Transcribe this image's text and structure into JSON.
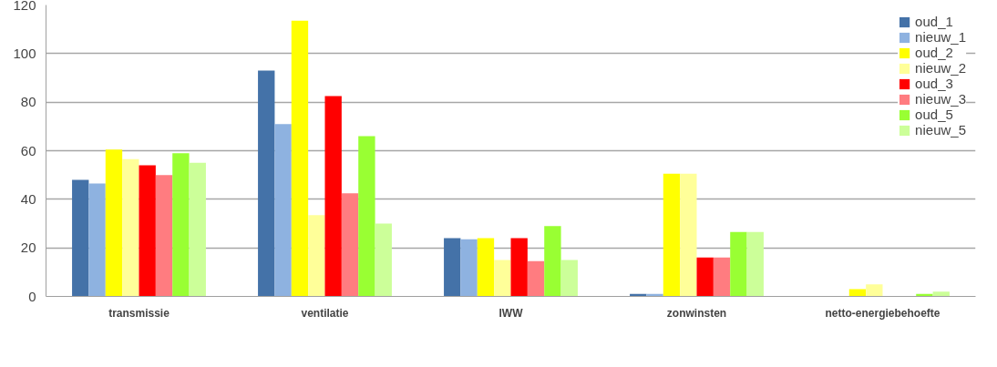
{
  "chart_data": {
    "type": "bar",
    "categories": [
      "transmissie",
      "ventilatie",
      "IWW",
      "zonwinsten",
      "netto-energiebehoefte"
    ],
    "series": [
      {
        "name": "oud_1",
        "color": "#4472a8",
        "values": [
          48,
          93,
          24,
          1,
          0
        ]
      },
      {
        "name": "nieuw_1",
        "color": "#8eb2e0",
        "values": [
          46.5,
          71,
          23.5,
          1,
          0
        ]
      },
      {
        "name": "oud_2",
        "color": "#ffff00",
        "values": [
          60.5,
          113.5,
          24,
          50.5,
          3
        ]
      },
      {
        "name": "nieuw_2",
        "color": "#ffff99",
        "values": [
          56.5,
          33.5,
          15,
          50.5,
          5
        ]
      },
      {
        "name": "oud_3",
        "color": "#ff0000",
        "values": [
          54,
          82.5,
          24,
          16,
          0
        ]
      },
      {
        "name": "nieuw_3",
        "color": "#ff7c80",
        "values": [
          50,
          42.5,
          14.5,
          16,
          0
        ]
      },
      {
        "name": "oud_5",
        "color": "#99ff33",
        "values": [
          59,
          66,
          29,
          26.5,
          1
        ]
      },
      {
        "name": "nieuw_5",
        "color": "#ccff99",
        "values": [
          55,
          30,
          15,
          26.5,
          2
        ]
      }
    ],
    "ylim": [
      0,
      120
    ],
    "yticks": [
      0,
      20,
      40,
      60,
      80,
      100,
      120
    ],
    "grid": "y",
    "legend": "top right"
  }
}
